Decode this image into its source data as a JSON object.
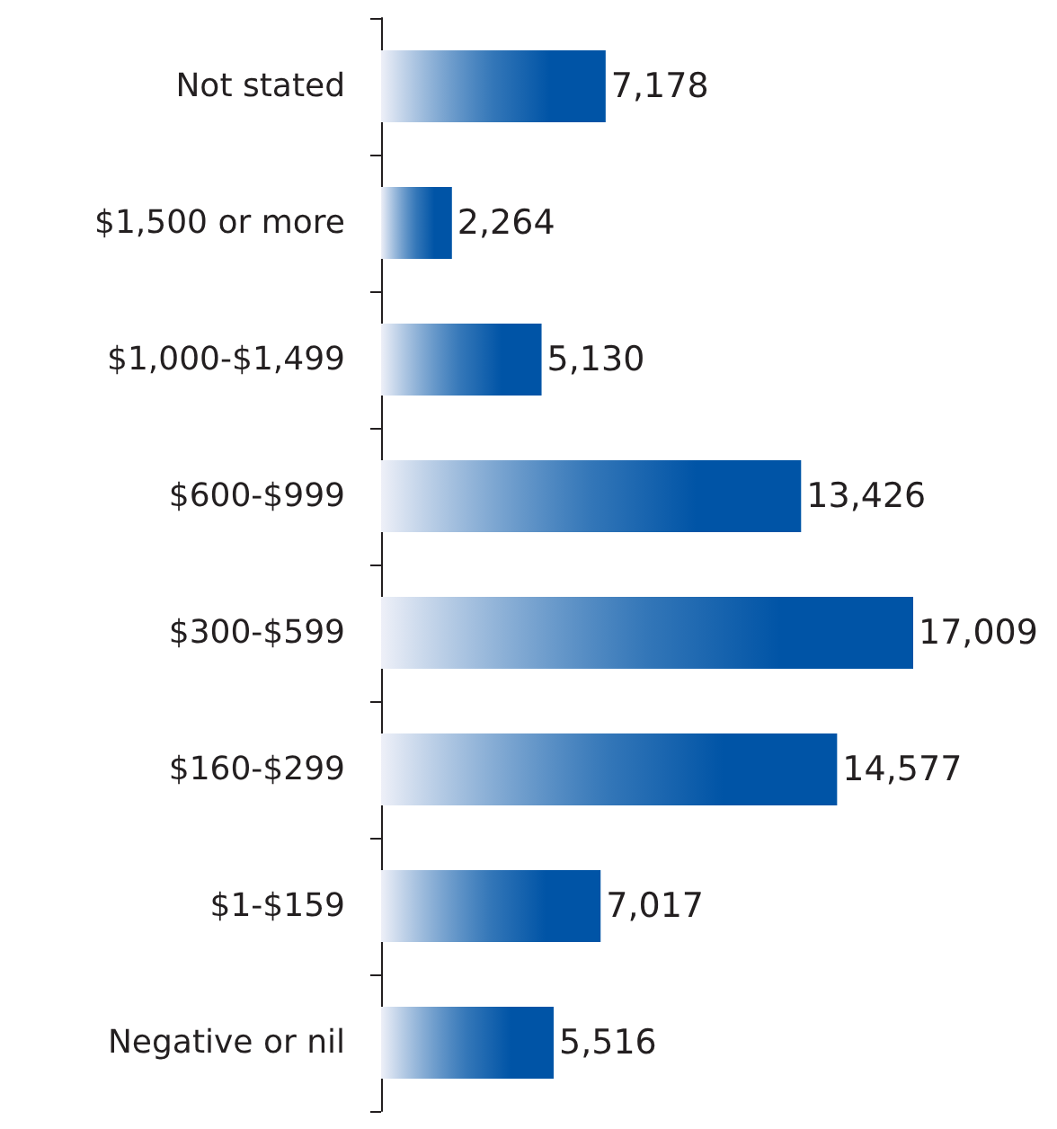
{
  "chart_data": {
    "type": "bar",
    "orientation": "horizontal",
    "categories": [
      "Not stated",
      "$1,500 or more",
      "$1,000-$1,499",
      "$600-$999",
      "$300-$599",
      "$160-$299",
      "$1-$159",
      "Negative or nil"
    ],
    "values": [
      7178,
      2264,
      5130,
      13426,
      17009,
      14577,
      7017,
      5516
    ],
    "value_labels": [
      "7,178",
      "2,264",
      "5,130",
      "13,426",
      "17,009",
      "14,577",
      "7,017",
      "5,516"
    ],
    "color": "#0054a6"
  }
}
